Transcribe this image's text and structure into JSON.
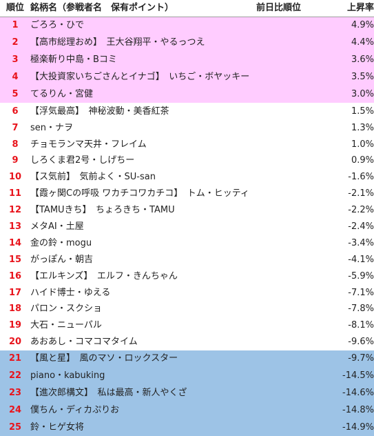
{
  "header": {
    "rank_label": "順位",
    "name_label": "銘柄名（参戦者名　保有ポイント）",
    "prev_label": "前日比順位",
    "rise_label": "上昇率"
  },
  "colors": {
    "top_tier_bg": "#ffccff",
    "bottom_tier_bg": "#9dc3e6",
    "rank_number": "#e8141c"
  },
  "rows": [
    {
      "rank": "1",
      "name": "ごろろ・ひで",
      "rise": "4.9%",
      "tier": "top"
    },
    {
      "rank": "2",
      "name": "【高市総理おめ】　王大谷翔平・やるっつえ",
      "rise": "4.4%",
      "tier": "top"
    },
    {
      "rank": "3",
      "name": "極楽斬り中島・Bコミ",
      "rise": "3.6%",
      "tier": "top"
    },
    {
      "rank": "4",
      "name": "【大投資家いちごさんとイナゴ】　いちご・ボヤッキー",
      "rise": "3.5%",
      "tier": "top"
    },
    {
      "rank": "5",
      "name": "てるりん・宮健",
      "rise": "3.0%",
      "tier": "top"
    },
    {
      "rank": "6",
      "name": "【浮気最高】　神秘波動・美香紅茶",
      "rise": "1.5%",
      "tier": "mid"
    },
    {
      "rank": "7",
      "name": "sen・ナヲ",
      "rise": "1.3%",
      "tier": "mid"
    },
    {
      "rank": "8",
      "name": "チョモランマ天井・フレイム",
      "rise": "1.0%",
      "tier": "mid"
    },
    {
      "rank": "9",
      "name": "しろくま君2号・しげちー",
      "rise": "0.9%",
      "tier": "mid"
    },
    {
      "rank": "10",
      "name": "【ス気前】　気前よく・SU-san",
      "rise": "-1.6%",
      "tier": "mid"
    },
    {
      "rank": "11",
      "name": "【霞ヶ関Cの呼吸 ワカチコワカチコ】　トム・ヒッティ",
      "rise": "-2.1%",
      "tier": "mid"
    },
    {
      "rank": "12",
      "name": "【TAMUきち】　ちょろきち・TAMU",
      "rise": "-2.2%",
      "tier": "mid"
    },
    {
      "rank": "13",
      "name": "メタAI・土屋",
      "rise": "-2.4%",
      "tier": "mid"
    },
    {
      "rank": "14",
      "name": "金の鈴・mogu",
      "rise": "-3.4%",
      "tier": "mid"
    },
    {
      "rank": "15",
      "name": "がっぽん・朝吉",
      "rise": "-4.1%",
      "tier": "mid"
    },
    {
      "rank": "16",
      "name": "【エルキンズ】　エルフ・きんちゃん",
      "rise": "-5.9%",
      "tier": "mid"
    },
    {
      "rank": "17",
      "name": "ハイド博士・ゆえる",
      "rise": "-7.1%",
      "tier": "mid"
    },
    {
      "rank": "18",
      "name": "パロン・スクショ",
      "rise": "-7.8%",
      "tier": "mid"
    },
    {
      "rank": "19",
      "name": "大石・ニューパル",
      "rise": "-8.1%",
      "tier": "mid"
    },
    {
      "rank": "20",
      "name": "あおあし・コマコマタイム",
      "rise": "-9.6%",
      "tier": "mid"
    },
    {
      "rank": "21",
      "name": "【風と星】　風のマソ・ロックスター",
      "rise": "-9.7%",
      "tier": "bottom"
    },
    {
      "rank": "22",
      "name": "piano・kabuking",
      "rise": "-14.5%",
      "tier": "bottom"
    },
    {
      "rank": "23",
      "name": "【進次郎構文】　私は最高・新人やくざ",
      "rise": "-14.6%",
      "tier": "bottom"
    },
    {
      "rank": "24",
      "name": "僕ちん・ディカぷりお",
      "rise": "-14.8%",
      "tier": "bottom"
    },
    {
      "rank": "25",
      "name": "鈴・ヒゲ女将",
      "rise": "-14.9%",
      "tier": "bottom"
    }
  ]
}
